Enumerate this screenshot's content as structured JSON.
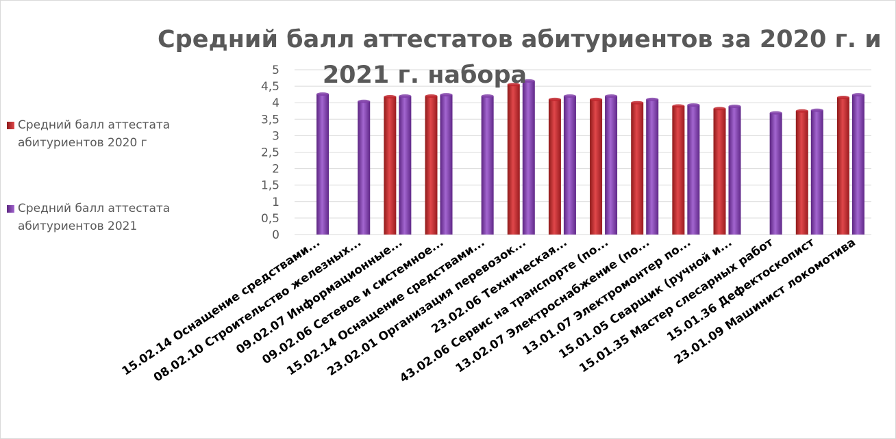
{
  "chart_data": {
    "type": "bar",
    "title_lines": [
      "Средний балл аттестатов абитуриентов за 2020 г. и",
      "2021 г. набора"
    ],
    "xlabel": "",
    "ylabel": "",
    "ylim": [
      0,
      5
    ],
    "yticks": [
      "0",
      "0,5",
      "1",
      "1,5",
      "2",
      "2,5",
      "3",
      "3,5",
      "4",
      "4,5",
      "5"
    ],
    "grid": true,
    "legend_position": "left",
    "categories": [
      "15.02.14 Оснащение средствами...",
      "08.02.10 Строительство железных...",
      "09.02.07 Информационные...",
      "09.02.06  Сетевое и системное...",
      "15.02.14 Оснащение средствами...",
      "23.02.01 Организация перевозок...",
      "23.02.06 Техническая...",
      "43.02.06 Сервис на транспорте (по...",
      "13.02.07 Электроснабжение (по...",
      "13.01.07 Электромонтер по...",
      "15.01.05 Сварщик (ручной и...",
      "15.01.35 Мастер слесарных работ",
      "15.01.36 Дефектоскопист",
      "23.01.09 Машинист локомотива"
    ],
    "series": [
      {
        "name": "Средний балл аттестата абитуриентов 2020 г",
        "legend_lines": [
          "Средний балл аттестата",
          "абитуриентов 2020 г"
        ],
        "color": "#c0262d",
        "values": [
          null,
          null,
          4.18,
          4.2,
          null,
          4.55,
          4.1,
          4.1,
          4.0,
          3.9,
          3.82,
          null,
          3.75,
          4.16
        ]
      },
      {
        "name": "Средний балл аттестата абитуриентов 2021",
        "legend_lines": [
          "Средний балл аттестата",
          "абитуриентов 2021"
        ],
        "color": "#8040a8",
        "values": [
          4.26,
          4.04,
          4.2,
          4.24,
          4.2,
          4.66,
          4.2,
          4.2,
          4.1,
          3.93,
          3.89,
          3.69,
          3.77,
          4.24
        ]
      }
    ]
  },
  "colors": {
    "title": "#595959",
    "text": "#595959",
    "axis_label": "#000000",
    "grid": "#d9d9d9"
  }
}
